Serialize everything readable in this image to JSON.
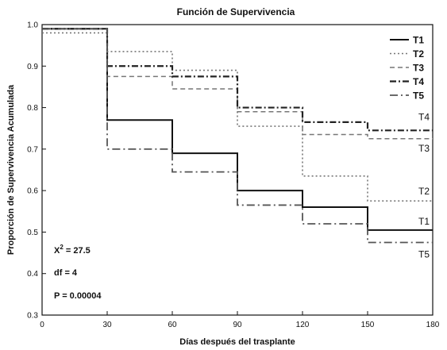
{
  "chart_data": {
    "type": "line",
    "title": "Función de Supervivencia",
    "xlabel": "Días después del trasplante",
    "ylabel": "Proporción de Supervivencia Acumulada",
    "xlim": [
      0,
      180
    ],
    "ylim": [
      0.3,
      1.0
    ],
    "xticks": [
      "0",
      "30",
      "60",
      "90",
      "120",
      "150",
      "180"
    ],
    "yticks": [
      "0.3",
      "0.4",
      "0.5",
      "0.6",
      "0.7",
      "0.8",
      "0.9",
      "1.0"
    ],
    "grid": false,
    "legend_position": "top-right",
    "x": [
      0,
      30,
      60,
      90,
      120,
      150,
      180
    ],
    "series": [
      {
        "name": "T1",
        "end_label": "T1",
        "color": "#111111",
        "style": "solid",
        "values": [
          0.99,
          0.77,
          0.69,
          0.6,
          0.56,
          0.505,
          0.505
        ]
      },
      {
        "name": "T2",
        "end_label": "T2",
        "color": "#777777",
        "style": "dotted",
        "values": [
          0.98,
          0.935,
          0.89,
          0.755,
          0.635,
          0.575,
          0.575
        ]
      },
      {
        "name": "T3",
        "end_label": "T3",
        "color": "#777777",
        "style": "dashed",
        "values": [
          0.99,
          0.875,
          0.845,
          0.79,
          0.735,
          0.725,
          0.725
        ]
      },
      {
        "name": "T4",
        "end_label": "T4",
        "color": "#222222",
        "style": "dashdot",
        "values": [
          0.99,
          0.9,
          0.875,
          0.8,
          0.765,
          0.745,
          0.745
        ]
      },
      {
        "name": "T5",
        "end_label": "T5",
        "color": "#555555",
        "style": "longdash",
        "values": [
          0.99,
          0.7,
          0.645,
          0.565,
          0.52,
          0.475,
          0.475
        ]
      }
    ],
    "annotations": {
      "chi_label": "X",
      "chi_exp": "2",
      "chi_value": " = 27.5",
      "df": "df = 4",
      "p": "P  = 0.00004"
    }
  }
}
